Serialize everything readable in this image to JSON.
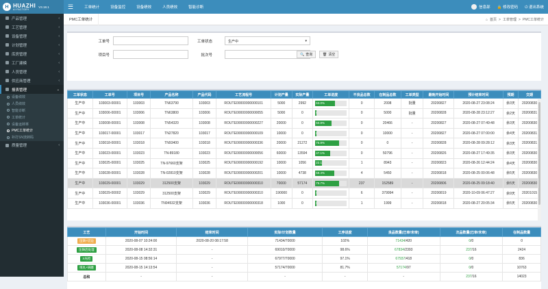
{
  "brand": {
    "name": "HUAZHI",
    "sub": "AI FACTORY",
    "version": "V3.18.1"
  },
  "topnav": [
    "工单统计",
    "设备监控",
    "设备绩效",
    "人员绩效",
    "智能诊断"
  ],
  "topright": {
    "user": "信息部",
    "password": "修改密码",
    "logout": "退出系统"
  },
  "sidebar": {
    "items": [
      "产品管理",
      "工艺管理",
      "设备管理",
      "计划管理",
      "库房管理",
      "工厂建模",
      "人员管理",
      "供应商管理",
      "报表管理"
    ],
    "subitems": [
      "设备绩效",
      "人员绩效",
      "智能诊断",
      "工单统计",
      "设备运转率",
      "PMC工单统计",
      "补打SN流转码"
    ],
    "after": "质量管理"
  },
  "tabs": {
    "home_icon": "home-icon",
    "active": "PMC工单统计"
  },
  "breadcrumbs": {
    "home": "首页",
    "mid": "工单管理",
    "current": "PMC工单统计"
  },
  "form": {
    "workorder_label": "工单号",
    "workorder_value": "",
    "status_label": "工单状态",
    "status_value": "生产中",
    "project_label": "项目号",
    "project_value": "",
    "batch_label": "批次号",
    "batch_value": "",
    "query": "查询",
    "clear": "清空"
  },
  "table1": {
    "headers": [
      "工单状态",
      "工单号",
      "项目号",
      "产品名称",
      "产品代码",
      "工艺流程号",
      "计划产量",
      "实际产量",
      "工单进度",
      "不良品总数",
      "在制品总数",
      "工单类型",
      "最晚开始时间",
      "预计结束时间",
      "预期",
      "交期"
    ],
    "rows": [
      [
        "生产中",
        "103003-00001",
        "103003",
        "TN63790",
        "103003",
        "ROUTE00000000000101",
        "5000",
        "2992",
        "63.0%",
        "0",
        "2008",
        "批量",
        "20200827",
        "2020-08-27 23:08:24",
        "余3天",
        "20200830"
      ],
      [
        "生产中",
        "103006-00001",
        "103006",
        "TN63800",
        "103006",
        "ROUTE00000000000055",
        "5000",
        "0",
        "0.0%",
        "0",
        "5000",
        "批量",
        "20200828",
        "2020-08-28 23:12:27",
        "余2天",
        "20200831"
      ],
      [
        "生产中",
        "103008-00001",
        "103008",
        "TN54320",
        "103008",
        "ROUTE00000000000227",
        "20000",
        "0",
        "50.8%",
        "0",
        "20466",
        "-",
        "20200827",
        "2020-08-27 07:49:48",
        "余3天",
        "20200830"
      ],
      [
        "生产中",
        "103017-00001",
        "103017",
        "TN27820",
        "103017",
        "ROUTE00000000000109",
        "10000",
        "0",
        "0.0%",
        "0",
        "10000",
        "-",
        "20200827",
        "2020-08-27 07:00:00",
        "余4天",
        "20200831"
      ],
      [
        "生产中",
        "103018-00001",
        "103018",
        "TN93400",
        "103018",
        "ROUTE00000000000336",
        "20000",
        "21272",
        "75.8%",
        "0",
        "0",
        "-",
        "20200828",
        "2020-08-28 09:28:12",
        "余3天",
        "20200831"
      ],
      [
        "生产中",
        "103023-00001",
        "103023",
        "TN-89180",
        "103023",
        "ROUTE00000000000056",
        "60000",
        "13594",
        "47.1%",
        "0",
        "50796",
        "-",
        "20200826",
        "2020-08-27 17:49:35",
        "余3天",
        "20200830"
      ],
      [
        "生产中",
        "103025-00001",
        "103025",
        "TN-97660支架",
        "103025",
        "ROUTE00000000000192",
        "10000",
        "1056",
        "22.1%",
        "1",
        "8943",
        "-",
        "20200823",
        "2020-08-26 12:44:24",
        "余4天",
        "20200830"
      ],
      [
        "生产中",
        "103028-00001",
        "103028",
        "TN-02810支架",
        "103028",
        "ROUTE00000000000201",
        "10000",
        "4738",
        "59.4%",
        "4",
        "5450",
        "-",
        "20200818",
        "2020-08-25 00:06:48",
        "余5天",
        "20200830"
      ],
      [
        "生产中",
        "103029-00001",
        "103029",
        "312500支架",
        "103029",
        "ROUTE00000000000310",
        "70000",
        "57174",
        "75.7%",
        "237",
        "152589",
        "-",
        "20200806",
        "2020-08-25 09:18:40",
        "余5天",
        "20200830"
      ],
      [
        "生产中",
        "103029-00002",
        "103029",
        "312500支架",
        "103029",
        "ROUTE00000000000310",
        "190000",
        "0",
        "0.0%",
        "6",
        "379994",
        "-",
        "20200819",
        "2020-10-09 06:47:27",
        "余9天",
        "20201015"
      ],
      [
        "生产中",
        "103036-00001",
        "103036",
        "TN94532支架",
        "103036",
        "ROUTE00000000000318",
        "1000",
        "0",
        "0.0%",
        "1",
        "1999",
        "-",
        "20200818",
        "2020-08-27 20:05:34",
        "余5天",
        "20200830"
      ]
    ]
  },
  "table2": {
    "headers": [
      "工艺",
      "开始时间",
      "结束时间",
      "实际/计划数量",
      "工序进度",
      "良品数量(已审/未审)",
      "次品数量(已审/未审)",
      "在制品数量"
    ],
    "rows": [
      {
        "proc": "压铸+切边",
        "color": "#f0ad4e",
        "start": "2020-08-07 10:24:00",
        "end": "2020-08-20 08:17:58",
        "qty": "71434/70000",
        "pct": "102%",
        "good_a": "71434",
        "good_b": "/420",
        "bad_a": "0",
        "bad_b": "/0",
        "wip": "0"
      },
      {
        "proc": "压铸后处理",
        "color": "#2ea043",
        "start": "2020-08-08 14:32:31",
        "end": "-",
        "qty": "69010/70000",
        "pct": "98.6%",
        "good_a": "67834",
        "good_b": "/2393",
        "bad_a": "237",
        "bad_b": "/16",
        "wip": "2424"
      },
      {
        "proc": "X光检",
        "color": "#2ea043",
        "start": "2020-08-15 08:56:14",
        "end": "-",
        "qty": "67977/70000",
        "pct": "97.1%",
        "good_a": "67937",
        "good_b": "/418",
        "bad_a": "0",
        "bad_b": "/0",
        "wip": "836"
      },
      {
        "proc": "喷丸+研磨",
        "color": "#2ea043",
        "start": "2020-08-15 14:13:54",
        "end": "-",
        "qty": "57174/70000",
        "pct": "81.7%",
        "good_a": "57174",
        "good_b": "/97",
        "bad_a": "0",
        "bad_b": "/0",
        "wip": "10763"
      },
      {
        "proc": "总和",
        "color": "",
        "start": "-",
        "end": "-",
        "qty": "-",
        "pct": "-",
        "good_a": "",
        "good_b": "-",
        "bad_a": "237",
        "bad_b": "/16",
        "wip": "14023"
      }
    ]
  }
}
